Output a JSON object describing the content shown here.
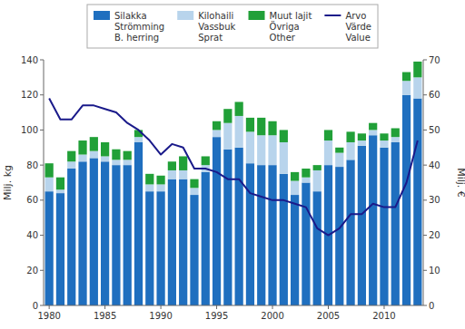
{
  "chart_data": {
    "type": "bar",
    "stacked": true,
    "grid": false,
    "legend": "top",
    "x": [
      1980,
      1981,
      1982,
      1983,
      1984,
      1985,
      1986,
      1987,
      1988,
      1989,
      1990,
      1991,
      1992,
      1993,
      1994,
      1995,
      1996,
      1997,
      1998,
      1999,
      2000,
      2001,
      2002,
      2003,
      2004,
      2005,
      2006,
      2007,
      2008,
      2009,
      2010,
      2011,
      2012,
      2013
    ],
    "xlim": [
      1979.5,
      2013.5
    ],
    "xticks": [
      1980,
      1985,
      1990,
      1995,
      2000,
      2005,
      2010
    ],
    "ylabel": "Milj. kg",
    "ylim": [
      0,
      140
    ],
    "yticks": [
      0,
      20,
      40,
      60,
      80,
      100,
      120,
      140
    ],
    "y2label": "Milj. €",
    "y2lim": [
      0,
      70
    ],
    "y2ticks": [
      0,
      10,
      20,
      30,
      40,
      50,
      60,
      70
    ],
    "series": [
      {
        "name": "Silakka\nStrömming\nB. herring",
        "type": "bar",
        "color": "#1F6FBF",
        "values": [
          65,
          64,
          78,
          82,
          84,
          82,
          80,
          80,
          93,
          65,
          65,
          72,
          72,
          63,
          76,
          96,
          89,
          90,
          81,
          80,
          80,
          75,
          63,
          70,
          65,
          80,
          79,
          83,
          91,
          97,
          90,
          93,
          120,
          118
        ]
      },
      {
        "name": "Kilohaili\nVassbuk\nSprat",
        "type": "bar",
        "color": "#B8D4EC",
        "values": [
          8,
          2,
          4,
          4,
          4,
          3,
          3,
          3,
          3,
          4,
          4,
          5,
          5,
          4,
          4,
          4,
          15,
          18,
          18,
          17,
          17,
          18,
          8,
          3,
          12,
          14,
          8,
          10,
          3,
          3,
          4,
          3,
          8,
          12
        ]
      },
      {
        "name": "Muut lajit\nÖvriga\nOther",
        "type": "bar",
        "color": "#21A038",
        "values": [
          8,
          7,
          6,
          8,
          8,
          8,
          6,
          5,
          4,
          6,
          5,
          5,
          8,
          5,
          5,
          5,
          8,
          8,
          8,
          10,
          8,
          7,
          5,
          5,
          3,
          6,
          3,
          6,
          4,
          4,
          4,
          5,
          5,
          9
        ]
      },
      {
        "name": "Arvo\nVärde\nValue",
        "type": "line",
        "axis": "y2",
        "color": "#1A1A8A",
        "values": [
          59,
          53,
          53,
          57,
          57,
          56,
          55,
          52,
          50,
          47,
          43,
          46,
          45,
          39,
          39,
          38,
          36,
          36,
          32,
          31,
          30,
          30,
          29,
          28,
          22,
          20,
          22,
          26,
          26,
          29,
          28,
          28,
          35,
          47
        ]
      }
    ]
  }
}
